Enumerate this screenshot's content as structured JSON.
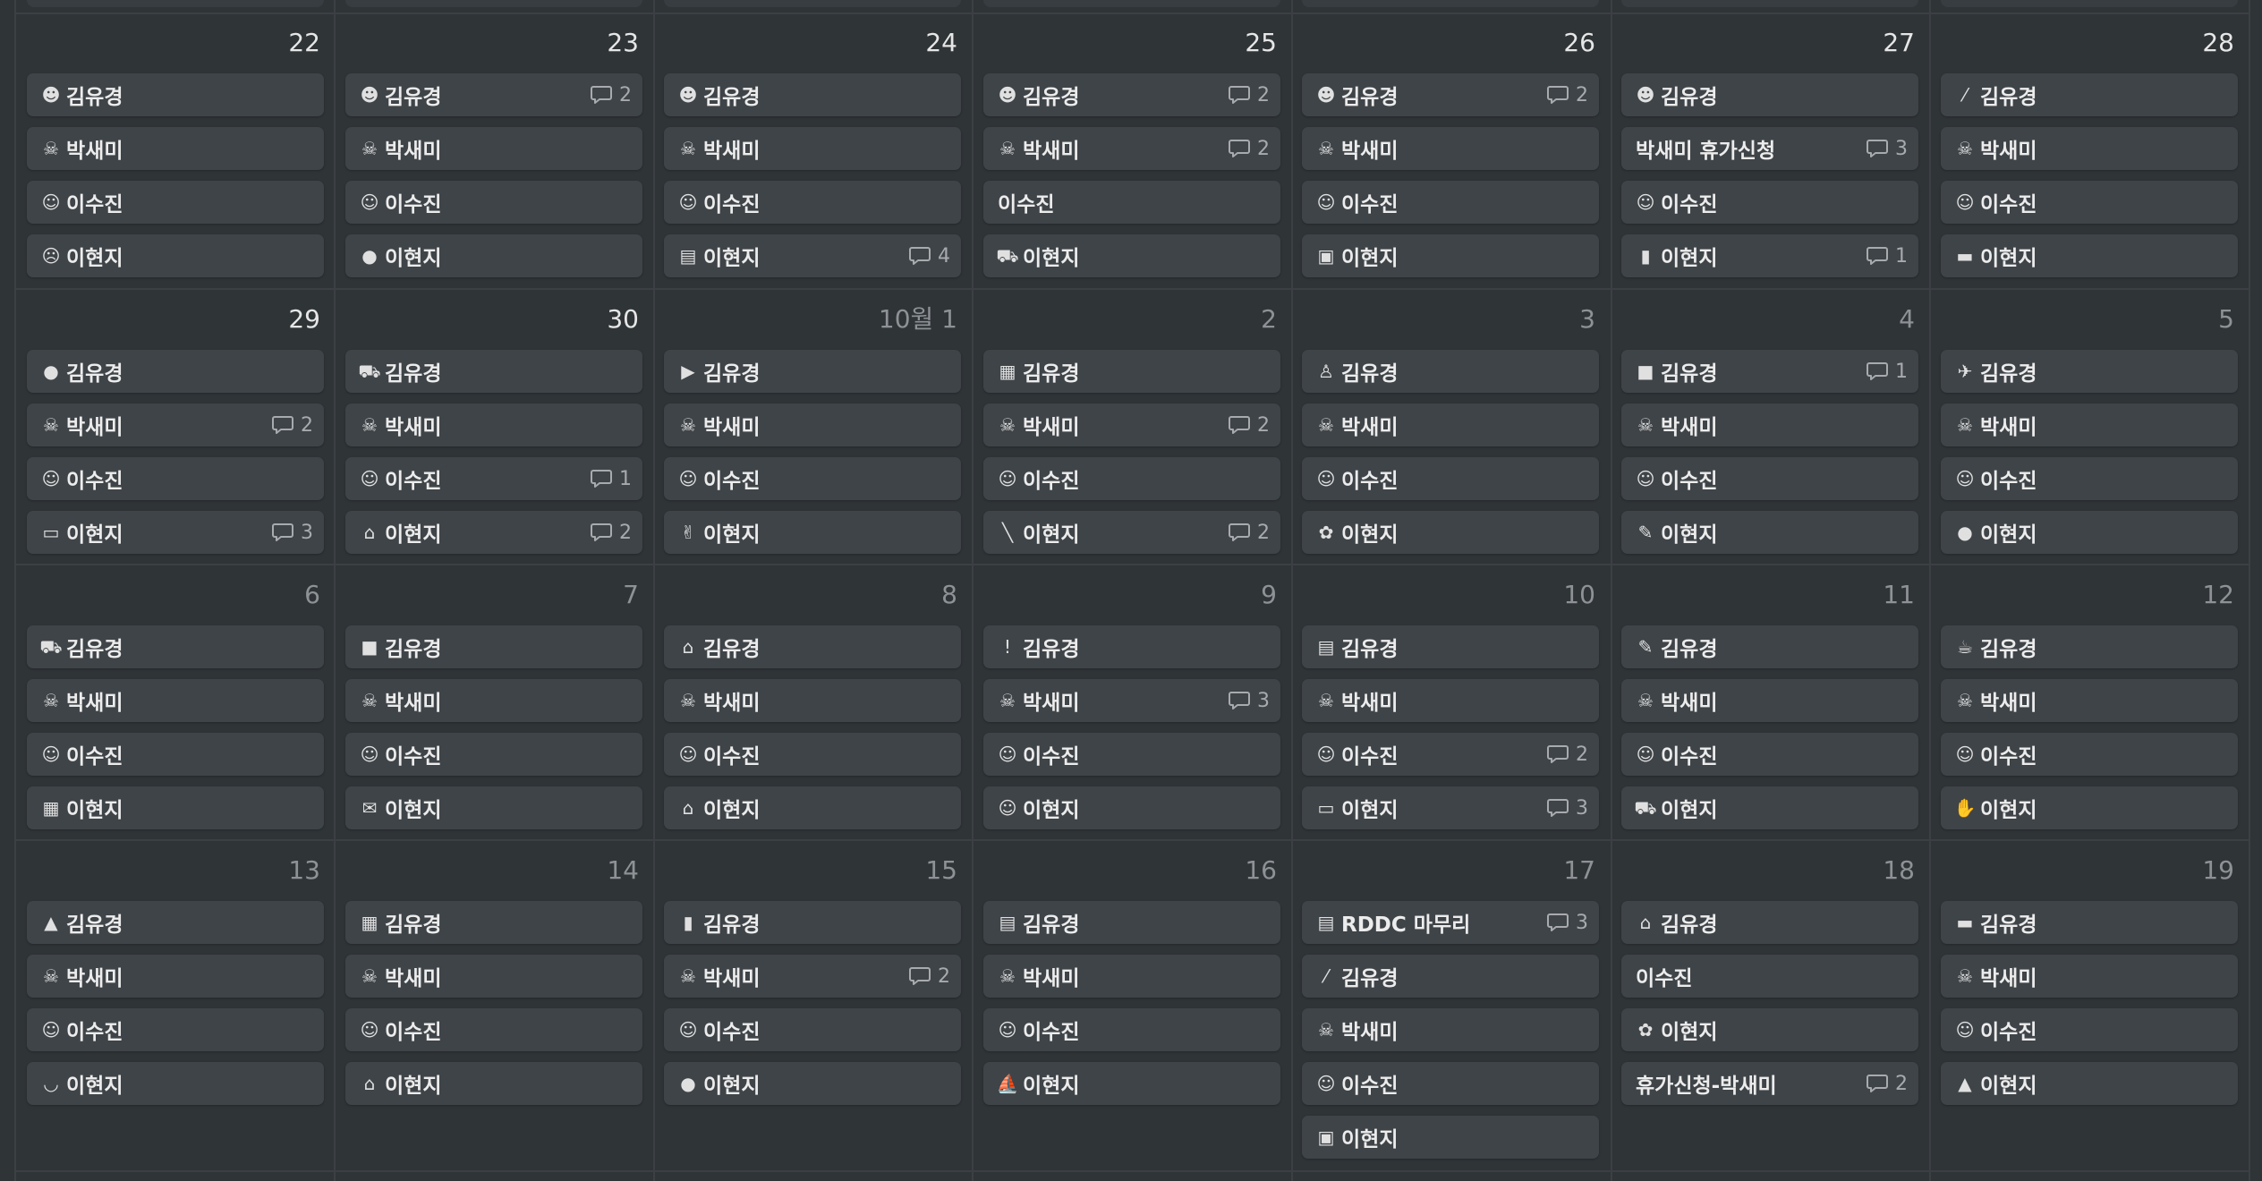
{
  "calendar": {
    "rows": [
      [
        {
          "label": "22",
          "current": true,
          "items": [
            {
              "icon": "☻",
              "title": "김유경"
            },
            {
              "icon": "☠",
              "title": "박새미"
            },
            {
              "icon": "☺",
              "title": "이수진"
            },
            {
              "icon": "☹",
              "title": "이현지"
            }
          ]
        },
        {
          "label": "23",
          "current": true,
          "items": [
            {
              "icon": "☻",
              "title": "김유경",
              "comments": "2"
            },
            {
              "icon": "☠",
              "title": "박새미"
            },
            {
              "icon": "☺",
              "title": "이수진"
            },
            {
              "icon": "●",
              "title": "이현지"
            }
          ]
        },
        {
          "label": "24",
          "current": true,
          "items": [
            {
              "icon": "☻",
              "title": "김유경"
            },
            {
              "icon": "☠",
              "title": "박새미"
            },
            {
              "icon": "☺",
              "title": "이수진"
            },
            {
              "icon": "▤",
              "title": "이현지",
              "comments": "4"
            }
          ]
        },
        {
          "label": "25",
          "current": true,
          "items": [
            {
              "icon": "☻",
              "title": "김유경",
              "comments": "2"
            },
            {
              "icon": "☠",
              "title": "박새미",
              "comments": "2"
            },
            {
              "title": "이수진"
            },
            {
              "icon": "⛟",
              "title": "이현지"
            }
          ]
        },
        {
          "label": "26",
          "current": true,
          "items": [
            {
              "icon": "☻",
              "title": "김유경",
              "comments": "2"
            },
            {
              "icon": "☠",
              "title": "박새미"
            },
            {
              "icon": "☺",
              "title": "이수진"
            },
            {
              "icon": "▣",
              "title": "이현지"
            }
          ]
        },
        {
          "label": "27",
          "current": true,
          "items": [
            {
              "icon": "☻",
              "title": "김유경"
            },
            {
              "title": "박새미 휴가신청",
              "comments": "3"
            },
            {
              "icon": "☺",
              "title": "이수진"
            },
            {
              "icon": "▮",
              "title": "이현지",
              "comments": "1"
            }
          ]
        },
        {
          "label": "28",
          "current": true,
          "items": [
            {
              "icon": "⁄",
              "title": "김유경"
            },
            {
              "icon": "☠",
              "title": "박새미"
            },
            {
              "icon": "☺",
              "title": "이수진"
            },
            {
              "icon": "▬",
              "title": "이현지"
            }
          ]
        }
      ],
      [
        {
          "label": "29",
          "current": true,
          "items": [
            {
              "icon": "●",
              "title": "김유경"
            },
            {
              "icon": "☠",
              "title": "박새미",
              "comments": "2"
            },
            {
              "icon": "☺",
              "title": "이수진"
            },
            {
              "icon": "▭",
              "title": "이현지",
              "comments": "3"
            }
          ]
        },
        {
          "label": "30",
          "current": true,
          "items": [
            {
              "icon": "⛟",
              "title": "김유경"
            },
            {
              "icon": "☠",
              "title": "박새미"
            },
            {
              "icon": "☺",
              "title": "이수진",
              "comments": "1"
            },
            {
              "icon": "⌂",
              "title": "이현지",
              "comments": "2"
            }
          ]
        },
        {
          "label": "10월 1",
          "current": false,
          "items": [
            {
              "icon": "▶",
              "title": "김유경"
            },
            {
              "icon": "☠",
              "title": "박새미"
            },
            {
              "icon": "☺",
              "title": "이수진"
            },
            {
              "icon": "✌",
              "title": "이현지"
            }
          ]
        },
        {
          "label": "2",
          "current": false,
          "items": [
            {
              "icon": "▦",
              "title": "김유경"
            },
            {
              "icon": "☠",
              "title": "박새미",
              "comments": "2"
            },
            {
              "icon": "☺",
              "title": "이수진"
            },
            {
              "icon": "╲",
              "title": "이현지",
              "comments": "2"
            }
          ]
        },
        {
          "label": "3",
          "current": false,
          "items": [
            {
              "icon": "♙",
              "title": "김유경"
            },
            {
              "icon": "☠",
              "title": "박새미"
            },
            {
              "icon": "☺",
              "title": "이수진"
            },
            {
              "icon": "✿",
              "title": "이현지"
            }
          ]
        },
        {
          "label": "4",
          "current": false,
          "items": [
            {
              "icon": "■",
              "title": "김유경",
              "comments": "1"
            },
            {
              "icon": "☠",
              "title": "박새미"
            },
            {
              "icon": "☺",
              "title": "이수진"
            },
            {
              "icon": "✎",
              "title": "이현지"
            }
          ]
        },
        {
          "label": "5",
          "current": false,
          "items": [
            {
              "icon": "✈",
              "title": "김유경"
            },
            {
              "icon": "☠",
              "title": "박새미"
            },
            {
              "icon": "☺",
              "title": "이수진"
            },
            {
              "icon": "●",
              "title": "이현지"
            }
          ]
        }
      ],
      [
        {
          "label": "6",
          "current": false,
          "items": [
            {
              "icon": "⛟",
              "title": "김유경"
            },
            {
              "icon": "☠",
              "title": "박새미"
            },
            {
              "icon": "☺",
              "title": "이수진"
            },
            {
              "icon": "▦",
              "title": "이현지"
            }
          ]
        },
        {
          "label": "7",
          "current": false,
          "items": [
            {
              "icon": "■",
              "title": "김유경"
            },
            {
              "icon": "☠",
              "title": "박새미"
            },
            {
              "icon": "☺",
              "title": "이수진"
            },
            {
              "icon": "✉",
              "title": "이현지"
            }
          ]
        },
        {
          "label": "8",
          "current": false,
          "items": [
            {
              "icon": "⌂",
              "title": "김유경"
            },
            {
              "icon": "☠",
              "title": "박새미"
            },
            {
              "icon": "☺",
              "title": "이수진"
            },
            {
              "icon": "⌂",
              "title": "이현지"
            }
          ]
        },
        {
          "label": "9",
          "current": false,
          "items": [
            {
              "icon": "ǃ",
              "title": "김유경"
            },
            {
              "icon": "☠",
              "title": "박새미",
              "comments": "3"
            },
            {
              "icon": "☺",
              "title": "이수진"
            },
            {
              "icon": "☺",
              "title": "이현지"
            }
          ]
        },
        {
          "label": "10",
          "current": false,
          "items": [
            {
              "icon": "▤",
              "title": "김유경"
            },
            {
              "icon": "☠",
              "title": "박새미"
            },
            {
              "icon": "☺",
              "title": "이수진",
              "comments": "2"
            },
            {
              "icon": "▭",
              "title": "이현지",
              "comments": "3"
            }
          ]
        },
        {
          "label": "11",
          "current": false,
          "items": [
            {
              "icon": "✎",
              "title": "김유경"
            },
            {
              "icon": "☠",
              "title": "박새미"
            },
            {
              "icon": "☺",
              "title": "이수진"
            },
            {
              "icon": "⛟",
              "title": "이현지"
            }
          ]
        },
        {
          "label": "12",
          "current": false,
          "items": [
            {
              "icon": "☕",
              "title": "김유경"
            },
            {
              "icon": "☠",
              "title": "박새미"
            },
            {
              "icon": "☺",
              "title": "이수진"
            },
            {
              "icon": "✋",
              "title": "이현지"
            }
          ]
        }
      ],
      [
        {
          "label": "13",
          "current": false,
          "items": [
            {
              "icon": "▲",
              "title": "김유경"
            },
            {
              "icon": "☠",
              "title": "박새미"
            },
            {
              "icon": "☺",
              "title": "이수진"
            },
            {
              "icon": "◡",
              "title": "이현지"
            }
          ]
        },
        {
          "label": "14",
          "current": false,
          "items": [
            {
              "icon": "▦",
              "title": "김유경"
            },
            {
              "icon": "☠",
              "title": "박새미"
            },
            {
              "icon": "☺",
              "title": "이수진"
            },
            {
              "icon": "⌂",
              "title": "이현지"
            }
          ]
        },
        {
          "label": "15",
          "current": false,
          "items": [
            {
              "icon": "▮",
              "title": "김유경"
            },
            {
              "icon": "☠",
              "title": "박새미",
              "comments": "2"
            },
            {
              "icon": "☺",
              "title": "이수진"
            },
            {
              "icon": "●",
              "title": "이현지"
            }
          ]
        },
        {
          "label": "16",
          "current": false,
          "items": [
            {
              "icon": "▤",
              "title": "김유경"
            },
            {
              "icon": "☠",
              "title": "박새미"
            },
            {
              "icon": "☺",
              "title": "이수진"
            },
            {
              "icon": "⛵",
              "title": "이현지"
            }
          ]
        },
        {
          "label": "17",
          "current": false,
          "items": [
            {
              "icon": "▤",
              "title": "RDDC 마무리",
              "comments": "3"
            },
            {
              "icon": "⁄",
              "title": "김유경"
            },
            {
              "icon": "☠",
              "title": "박새미"
            },
            {
              "icon": "☺",
              "title": "이수진"
            },
            {
              "icon": "▣",
              "title": "이현지"
            }
          ]
        },
        {
          "label": "18",
          "current": false,
          "items": [
            {
              "icon": "⌂",
              "title": "김유경"
            },
            {
              "title": "이수진"
            },
            {
              "icon": "✿",
              "title": "이현지"
            },
            {
              "title": "휴가신청-박새미",
              "comments": "2"
            }
          ]
        },
        {
          "label": "19",
          "current": false,
          "items": [
            {
              "icon": "▬",
              "title": "김유경"
            },
            {
              "icon": "☠",
              "title": "박새미"
            },
            {
              "icon": "☺",
              "title": "이수진"
            },
            {
              "icon": "▲",
              "title": "이현지"
            }
          ]
        }
      ]
    ]
  }
}
